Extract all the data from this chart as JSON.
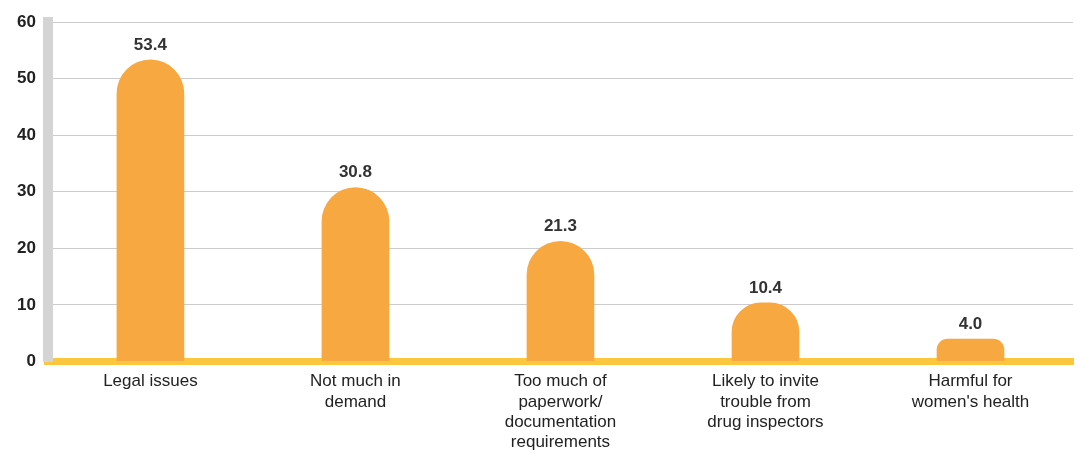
{
  "chart_data": {
    "type": "bar",
    "categories": [
      "Legal issues",
      "Not much in demand",
      "Too much of paperwork/ documentation requirements",
      "Likely to invite trouble from drug inspectors",
      "Harmful for women's health"
    ],
    "values": [
      53.4,
      30.8,
      21.3,
      10.4,
      4.0
    ],
    "value_labels": [
      "53.4",
      "30.8",
      "21.3",
      "10.4",
      "4.0"
    ],
    "color": "#f8a841",
    "ylim": [
      0,
      60
    ],
    "yticks": [
      0,
      10,
      20,
      30,
      40,
      50,
      60
    ],
    "grid": "y",
    "legend": false
  }
}
